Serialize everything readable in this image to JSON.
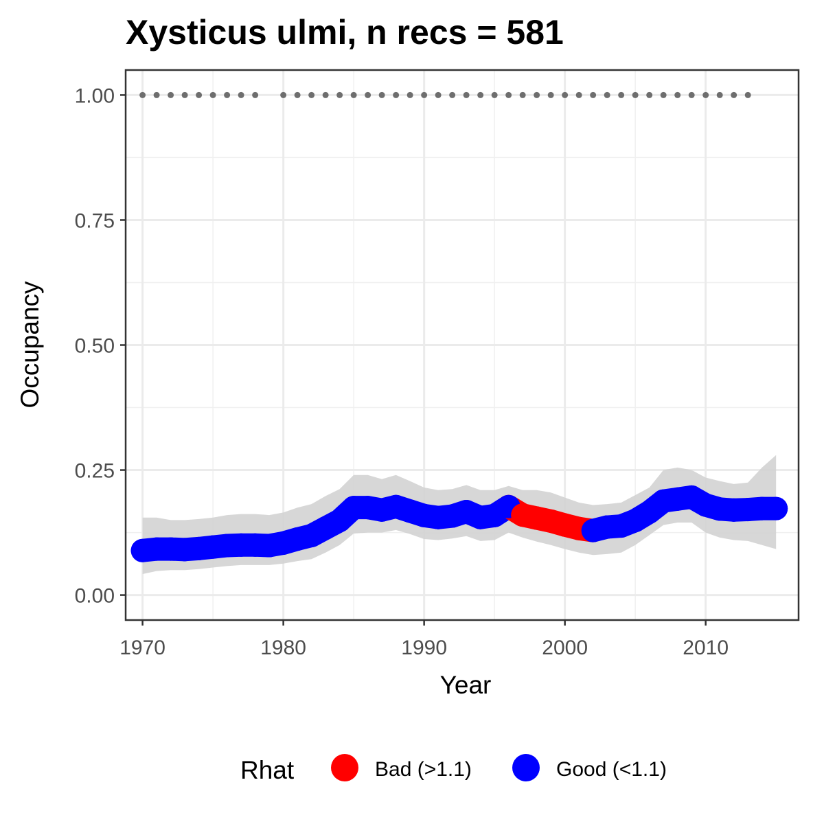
{
  "chart_data": {
    "type": "line",
    "title": "Xysticus ulmi, n recs = 581",
    "xlabel": "Year",
    "ylabel": "Occupancy",
    "xlim": [
      1968.8,
      2016.6
    ],
    "ylim": [
      -0.05,
      1.05
    ],
    "x_ticks": [
      1970,
      1980,
      1990,
      2000,
      2010
    ],
    "x_tick_labels": [
      "1970",
      "1980",
      "1990",
      "2000",
      "2010"
    ],
    "y_ticks": [
      0,
      0.25,
      0.5,
      0.75,
      1.0
    ],
    "y_tick_labels": [
      "0.00",
      "0.25",
      "0.50",
      "0.75",
      "1.00"
    ],
    "grid": true,
    "legend": {
      "title": "Rhat",
      "position": "bottom",
      "entries": [
        {
          "label": "Bad (>1.1)",
          "color": "#ff0000"
        },
        {
          "label": "Good (<1.1)",
          "color": "#0000ff"
        }
      ]
    },
    "colors": {
      "bad": "#ff0000",
      "good": "#0000ff",
      "ribbon": "#d3d3d3",
      "record_dots": "#6e6e6e"
    },
    "x": [
      1970,
      1971,
      1972,
      1973,
      1974,
      1975,
      1976,
      1977,
      1978,
      1979,
      1980,
      1981,
      1982,
      1983,
      1984,
      1985,
      1986,
      1987,
      1988,
      1989,
      1990,
      1991,
      1992,
      1993,
      1994,
      1995,
      1996,
      1997,
      1998,
      1999,
      2000,
      2001,
      2002,
      2003,
      2004,
      2005,
      2006,
      2007,
      2008,
      2009,
      2010,
      2011,
      2012,
      2013,
      2014,
      2015
    ],
    "series": [
      {
        "values": [
          0.089,
          0.092,
          0.092,
          0.091,
          0.093,
          0.096,
          0.099,
          0.1,
          0.1,
          0.099,
          0.104,
          0.112,
          0.119,
          0.134,
          0.149,
          0.175,
          0.175,
          0.17,
          0.177,
          0.168,
          0.159,
          0.155,
          0.158,
          0.167,
          0.155,
          0.159,
          0.177,
          0.16,
          0.154,
          0.148,
          0.14,
          0.133,
          0.129,
          0.136,
          0.138,
          0.149,
          0.166,
          0.188,
          0.192,
          0.196,
          0.18,
          0.172,
          0.17,
          0.171,
          0.173,
          0.173
        ],
        "lower": [
          0.042,
          0.048,
          0.05,
          0.05,
          0.052,
          0.055,
          0.058,
          0.06,
          0.06,
          0.06,
          0.063,
          0.068,
          0.072,
          0.085,
          0.1,
          0.123,
          0.125,
          0.125,
          0.13,
          0.122,
          0.112,
          0.11,
          0.113,
          0.118,
          0.108,
          0.11,
          0.125,
          0.115,
          0.107,
          0.1,
          0.092,
          0.085,
          0.08,
          0.082,
          0.085,
          0.1,
          0.12,
          0.14,
          0.145,
          0.145,
          0.125,
          0.115,
          0.11,
          0.108,
          0.1,
          0.092
        ],
        "upper": [
          0.155,
          0.155,
          0.15,
          0.15,
          0.152,
          0.155,
          0.16,
          0.162,
          0.162,
          0.16,
          0.165,
          0.175,
          0.182,
          0.198,
          0.212,
          0.24,
          0.24,
          0.232,
          0.24,
          0.228,
          0.215,
          0.21,
          0.212,
          0.22,
          0.21,
          0.21,
          0.218,
          0.21,
          0.21,
          0.205,
          0.195,
          0.185,
          0.18,
          0.182,
          0.185,
          0.2,
          0.215,
          0.25,
          0.255,
          0.25,
          0.235,
          0.228,
          0.222,
          0.225,
          0.255,
          0.28
        ],
        "rhat": [
          "Good",
          "Good",
          "Good",
          "Good",
          "Good",
          "Good",
          "Good",
          "Good",
          "Good",
          "Good",
          "Good",
          "Good",
          "Good",
          "Good",
          "Good",
          "Good",
          "Good",
          "Good",
          "Good",
          "Good",
          "Good",
          "Good",
          "Good",
          "Good",
          "Good",
          "Good",
          "Good",
          "Bad",
          "Bad",
          "Bad",
          "Bad",
          "Bad",
          "Good",
          "Good",
          "Good",
          "Good",
          "Good",
          "Good",
          "Good",
          "Good",
          "Good",
          "Good",
          "Good",
          "Good",
          "Good",
          "Good"
        ]
      }
    ],
    "record_years": [
      1970,
      1971,
      1972,
      1973,
      1974,
      1975,
      1976,
      1977,
      1978,
      1980,
      1981,
      1982,
      1983,
      1984,
      1985,
      1986,
      1987,
      1988,
      1989,
      1990,
      1991,
      1992,
      1993,
      1994,
      1995,
      1996,
      1997,
      1998,
      1999,
      2000,
      2001,
      2002,
      2003,
      2004,
      2005,
      2006,
      2007,
      2008,
      2009,
      2010,
      2011,
      2012,
      2013
    ],
    "record_value": 1.0
  }
}
